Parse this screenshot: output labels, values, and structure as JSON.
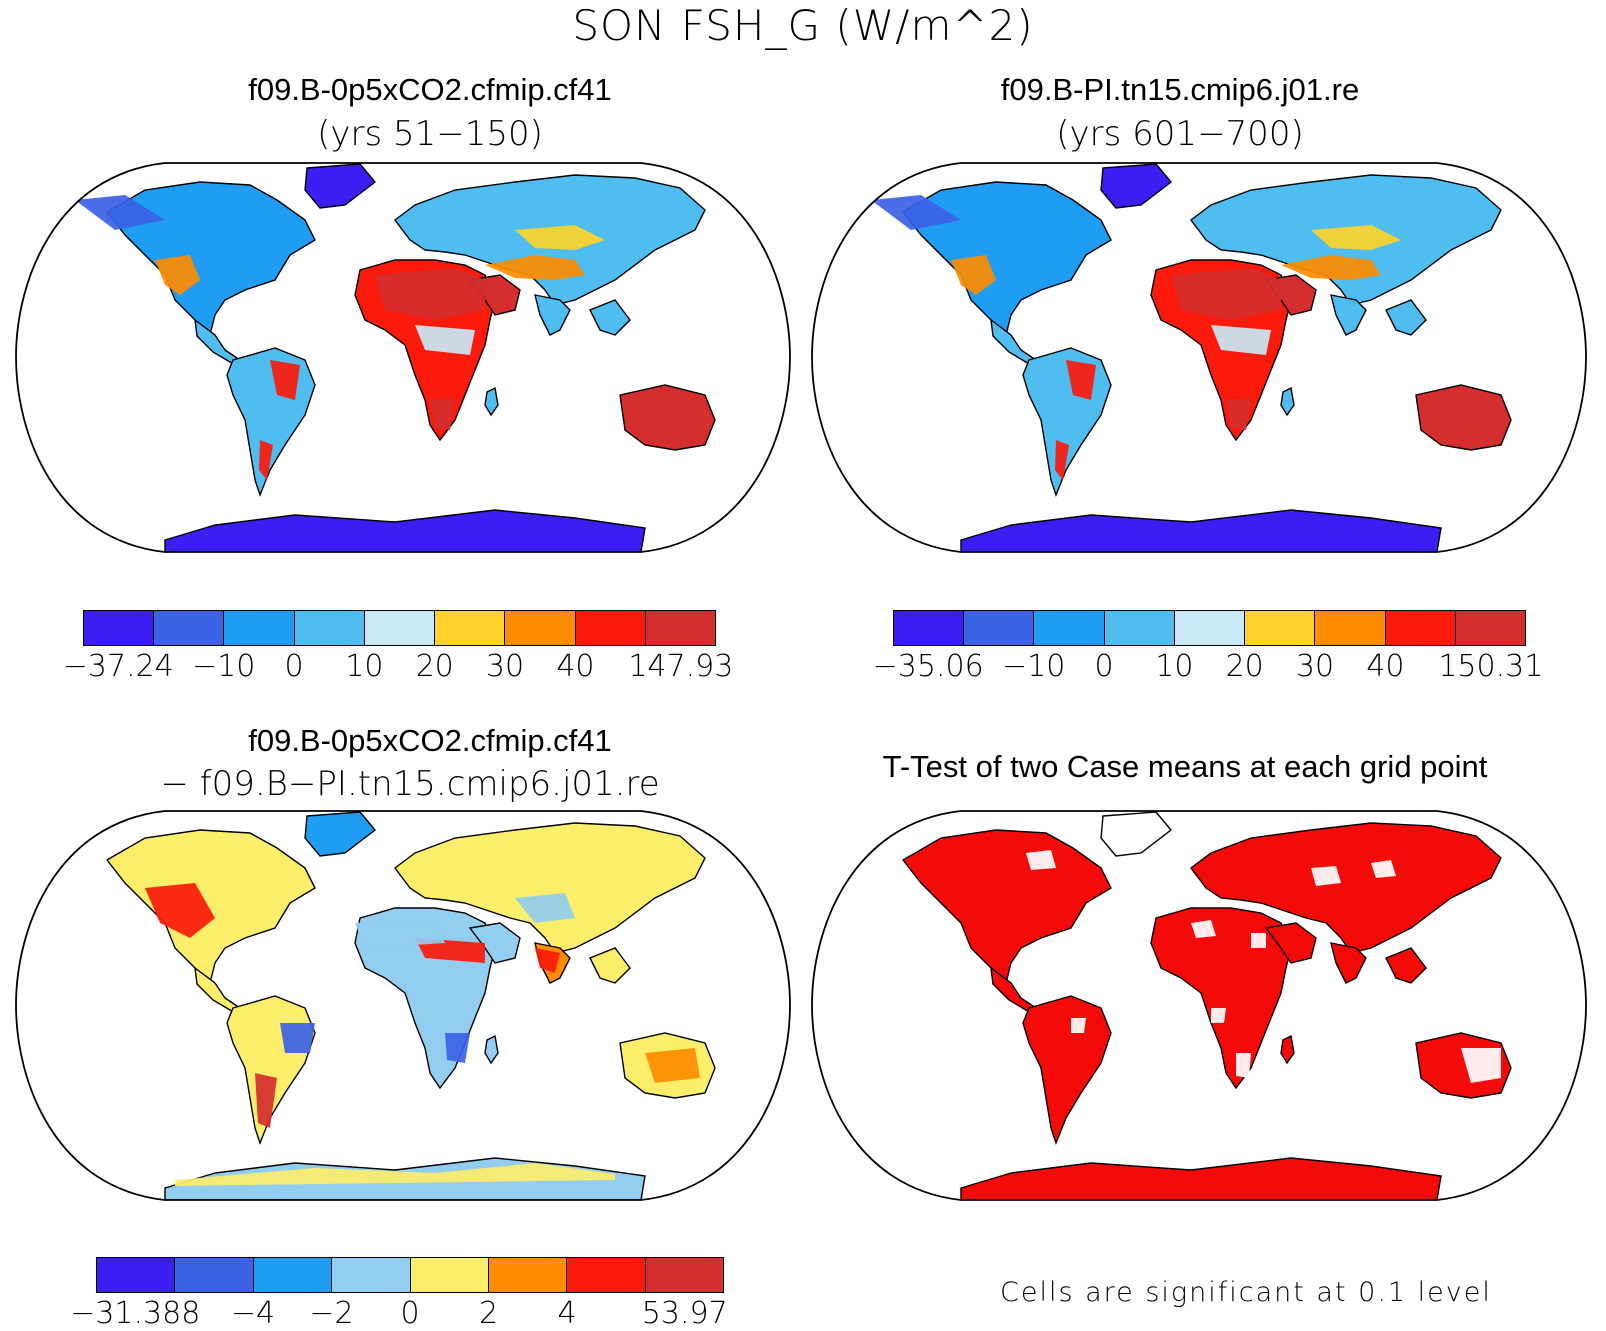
{
  "figure": {
    "main_title": "SON FSH_G (W/m^2)",
    "panels": [
      {
        "title": "f09.B-0p5xCO2.cfmip.cf41",
        "subtitle": "(yrs 51−150)",
        "colorbar": {
          "colors": [
            "#3a1ef2",
            "#3c62e6",
            "#1e9df2",
            "#4fbdf0",
            "#c9e8f7",
            "#fdd22a",
            "#fd8c00",
            "#fb1a0b",
            "#d42e2e"
          ],
          "labels": [
            "−37.24",
            "−10",
            "0",
            "10",
            "20",
            "30",
            "40",
            "147.93"
          ]
        }
      },
      {
        "title": "f09.B-PI.tn15.cmip6.j01.re",
        "subtitle": "(yrs 601−700)",
        "colorbar": {
          "colors": [
            "#3a1ef2",
            "#3c62e6",
            "#1e9df2",
            "#4fbdf0",
            "#c9e8f7",
            "#fdd22a",
            "#fd8c00",
            "#fb1a0b",
            "#d42e2e"
          ],
          "labels": [
            "−35.06",
            "−10",
            "0",
            "10",
            "20",
            "30",
            "40",
            "150.31"
          ]
        }
      },
      {
        "title": "f09.B-0p5xCO2.cfmip.cf41",
        "subtitle": "− f09.B−PI.tn15.cmip6.j01.re",
        "colorbar": {
          "colors": [
            "#3a1ef2",
            "#3c62e6",
            "#1e9df2",
            "#93cdef",
            "#fbee6b",
            "#fd8c00",
            "#fb1a0b",
            "#d42e2e"
          ],
          "labels": [
            "−31.388",
            "−4",
            "−2",
            "0",
            "2",
            "4",
            "53.97"
          ]
        }
      },
      {
        "title": "T-Test of two Case means at each grid point",
        "note": "Cells are significant at 0.1 level",
        "significant_color": "#f50a0a"
      }
    ]
  }
}
